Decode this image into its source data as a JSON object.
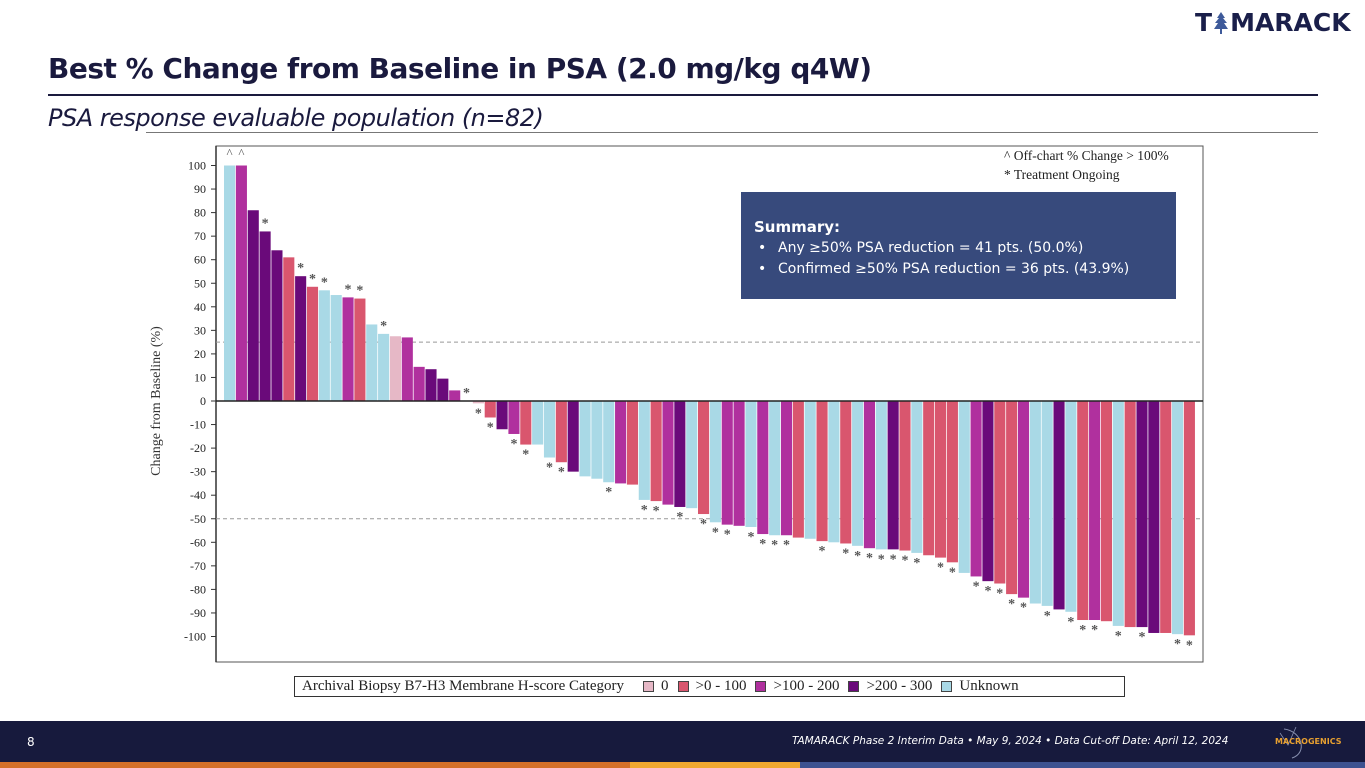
{
  "header": {
    "logo_text_left": "T",
    "logo_text_right": "MARACK",
    "title": "Best % Change from Baseline in PSA (2.0 mg/kg q4W)",
    "subtitle": "PSA response evaluable population (n=82)"
  },
  "notes": {
    "off_chart": "^ Off-chart % Change > 100%",
    "ongoing": "* Treatment Ongoing"
  },
  "summary": {
    "title": "Summary:",
    "items": [
      "Any ≥50% PSA reduction = 41 pts. (50.0%)",
      "Confirmed ≥50% PSA reduction = 36 pts. (43.9%)"
    ]
  },
  "legend": {
    "title": "Archival Biopsy B7-H3 Membrane H-score Category",
    "items": [
      {
        "key": "0",
        "label": "0",
        "color": "#e6b8c6"
      },
      {
        "key": "1",
        "label": ">0 - 100",
        "color": "#d9566e"
      },
      {
        "key": "2",
        "label": ">100 - 200",
        "color": "#b0309e"
      },
      {
        "key": "3",
        "label": ">200 - 300",
        "color": "#6a0a7a"
      },
      {
        "key": "u",
        "label": "Unknown",
        "color": "#a9d9e6"
      }
    ]
  },
  "chart_data": {
    "type": "bar",
    "subtype": "waterfall",
    "title": "Best % Change from Baseline in PSA (2.0 mg/kg q4W)",
    "xlabel": "",
    "ylabel": "Change from Baseline (%)",
    "ylim": [
      -110,
      110
    ],
    "yticks": [
      100,
      90,
      80,
      70,
      60,
      50,
      40,
      30,
      20,
      10,
      0,
      -10,
      -20,
      -30,
      -40,
      -50,
      -60,
      -70,
      -80,
      -90,
      -100
    ],
    "reference_lines": [
      25,
      -50
    ],
    "grid": false,
    "legend_position": "bottom",
    "categories_key": {
      "0": "0",
      "1": ">0 - 100",
      "2": ">100 - 200",
      "3": ">200 - 300",
      "u": "Unknown"
    },
    "values": [
      100,
      100,
      81,
      72,
      64,
      61,
      53,
      48.5,
      47,
      45,
      44,
      43.5,
      32.5,
      28.5,
      27.5,
      27,
      14.5,
      13.5,
      9.5,
      4.5,
      0,
      -1,
      -7,
      -12,
      -14,
      -18.5,
      -18.5,
      -24,
      -26,
      -30,
      -32,
      -33,
      -34.5,
      -35,
      -35.5,
      -42,
      -42.5,
      -44,
      -45,
      -45.5,
      -48,
      -51.5,
      -52.5,
      -53,
      -53.5,
      -56.5,
      -57,
      -57,
      -58,
      -58.5,
      -59.5,
      -60,
      -60.5,
      -61.5,
      -62.5,
      -63,
      -63,
      -63.5,
      -64.5,
      -65.5,
      -66.5,
      -68.5,
      -73,
      -74.5,
      -76.5,
      -77.5,
      -82,
      -83.5,
      -86,
      -87,
      -88.5,
      -89.5,
      -93,
      -93,
      -93.5,
      -95.5,
      -96,
      -96,
      -98.5,
      -98.5,
      -99,
      -99.5
    ],
    "category": [
      "u",
      "2",
      "3",
      "3",
      "3",
      "1",
      "3",
      "1",
      "u",
      "u",
      "2",
      "1",
      "u",
      "u",
      "0",
      "2",
      "2",
      "3",
      "3",
      "2",
      "0",
      "0",
      "1",
      "3",
      "2",
      "1",
      "u",
      "u",
      "1",
      "3",
      "u",
      "u",
      "u",
      "2",
      "1",
      "u",
      "1",
      "2",
      "3",
      "u",
      "1",
      "u",
      "2",
      "2",
      "u",
      "2",
      "u",
      "2",
      "1",
      "u",
      "1",
      "u",
      "1",
      "u",
      "2",
      "u",
      "3",
      "1",
      "u",
      "1",
      "1",
      "1",
      "u",
      "2",
      "3",
      "1",
      "1",
      "2",
      "u",
      "u",
      "3",
      "u",
      "1",
      "2",
      "1",
      "u",
      "1",
      "3",
      "3",
      "1",
      "u",
      "1"
    ],
    "off_chart": [
      1,
      2
    ],
    "treatment_ongoing": [
      4,
      7,
      8,
      9,
      11,
      12,
      14,
      21,
      22,
      23,
      25,
      26,
      28,
      29,
      33,
      36,
      37,
      39,
      41,
      42,
      43,
      45,
      46,
      47,
      48,
      51,
      53,
      54,
      55,
      56,
      57,
      58,
      59,
      61,
      62,
      64,
      65,
      66,
      67,
      68,
      70,
      72,
      73,
      74,
      76,
      78,
      81,
      82
    ],
    "off_chart_marker": "^",
    "ongoing_marker": "*"
  },
  "footer": {
    "page_number": "8",
    "text": "TAMARACK Phase 2 Interim Data • May 9, 2024 • Data Cut-off Date: April 12, 2024",
    "partner_logo": "MACROGENICS",
    "stripe_colors": [
      "#d4702a",
      "#f0a830",
      "#3e5290"
    ]
  }
}
